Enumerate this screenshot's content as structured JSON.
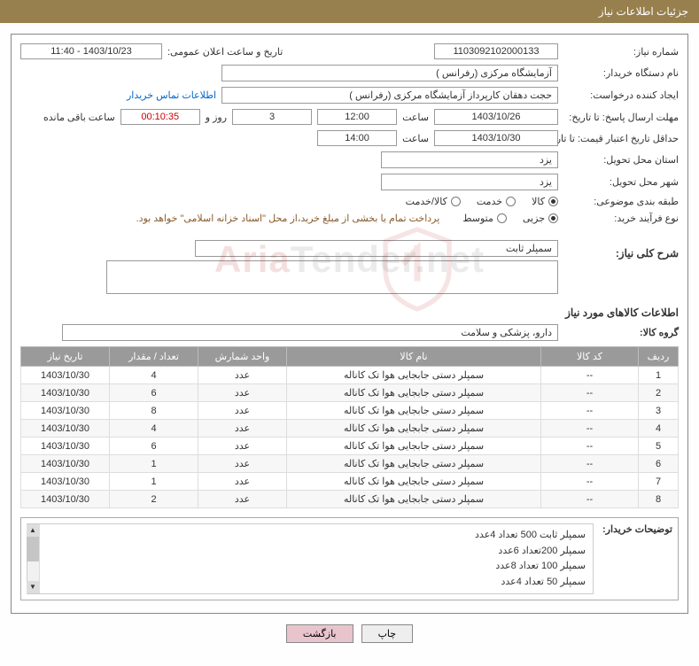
{
  "header": {
    "title": "جزئیات اطلاعات نیاز"
  },
  "fields": {
    "need_number_label": "شماره نیاز:",
    "need_number": "1103092102000133",
    "announce_date_label": "تاریخ و ساعت اعلان عمومی:",
    "announce_date": "1403/10/23 - 11:40",
    "buyer_org_label": "نام دستگاه خریدار:",
    "buyer_org": "آزمایشگاه مرکزی (رفرانس )",
    "requester_label": "ایجاد کننده درخواست:",
    "requester": "حجت دهقان کارپرداز آزمایشگاه مرکزی (رفرانس )",
    "contact_link": "اطلاعات تماس خریدار",
    "deadline_label": "مهلت ارسال پاسخ: تا تاریخ:",
    "deadline_date": "1403/10/26",
    "time_label": "ساعت",
    "deadline_time": "12:00",
    "remaining_days": "3",
    "days_and": "روز و",
    "remaining_time": "00:10:35",
    "remaining_suffix": "ساعت باقی مانده",
    "validity_label": "حداقل تاریخ اعتبار قیمت: تا تاریخ:",
    "validity_date": "1403/10/30",
    "validity_time": "14:00",
    "province_label": "استان محل تحویل:",
    "province": "یزد",
    "city_label": "شهر محل تحویل:",
    "city": "یزد",
    "category_label": "طبقه بندی موضوعی:",
    "cat_goods": "کالا",
    "cat_service": "خدمت",
    "cat_goods_service": "کالا/خدمت",
    "process_label": "نوع فرآیند خرید:",
    "proc_small": "جزیی",
    "proc_medium": "متوسط",
    "treasury_note": "پرداخت تمام یا بخشی از مبلغ خرید،از محل \"اسناد خزانه اسلامی\" خواهد بود.",
    "summary_label": "شرح کلی نیاز:",
    "summary_value": "سمپلر ثابت",
    "items_title": "اطلاعات کالاهای مورد نیاز",
    "group_label": "گروه کالا:",
    "group_value": "دارو، پزشکی و سلامت"
  },
  "table": {
    "headers": {
      "row": "ردیف",
      "code": "کد کالا",
      "name": "نام کالا",
      "unit": "واحد شمارش",
      "qty": "تعداد / مقدار",
      "date": "تاریخ نیاز"
    },
    "rows": [
      {
        "n": "1",
        "code": "--",
        "name": "سمپلر دستی جابجایی هوا تک کاناله",
        "unit": "عدد",
        "qty": "4",
        "date": "1403/10/30"
      },
      {
        "n": "2",
        "code": "--",
        "name": "سمپلر دستی جابجایی هوا تک کاناله",
        "unit": "عدد",
        "qty": "6",
        "date": "1403/10/30"
      },
      {
        "n": "3",
        "code": "--",
        "name": "سمپلر دستی جابجایی هوا تک کاناله",
        "unit": "عدد",
        "qty": "8",
        "date": "1403/10/30"
      },
      {
        "n": "4",
        "code": "--",
        "name": "سمپلر دستی جابجایی هوا تک کاناله",
        "unit": "عدد",
        "qty": "4",
        "date": "1403/10/30"
      },
      {
        "n": "5",
        "code": "--",
        "name": "سمپلر دستی جابجایی هوا تک کاناله",
        "unit": "عدد",
        "qty": "6",
        "date": "1403/10/30"
      },
      {
        "n": "6",
        "code": "--",
        "name": "سمپلر دستی جابجایی هوا تک کاناله",
        "unit": "عدد",
        "qty": "1",
        "date": "1403/10/30"
      },
      {
        "n": "7",
        "code": "--",
        "name": "سمپلر دستی جابجایی هوا تک کاناله",
        "unit": "عدد",
        "qty": "1",
        "date": "1403/10/30"
      },
      {
        "n": "8",
        "code": "--",
        "name": "سمپلر دستی جابجایی هوا تک کاناله",
        "unit": "عدد",
        "qty": "2",
        "date": "1403/10/30"
      }
    ]
  },
  "desc": {
    "label": "توضیحات خریدار:",
    "lines": [
      "سمپلر ثابت 500 تعداد 4عدد",
      "سمپلر 200تعداد 6عدد",
      "سمپلر 100 تعداد 8عدد",
      "سمپلر 50 تعداد 4عدد"
    ]
  },
  "buttons": {
    "print": "چاپ",
    "back": "بازگشت"
  },
  "watermark": {
    "red": "Aria",
    "gray": "Tender",
    "suffix": ".net"
  },
  "colors": {
    "header_bg": "#97804d",
    "th_bg": "#9a9a9a",
    "link": "#0066cc",
    "note": "#8a5a2b",
    "back_btn": "#e8c5cc"
  }
}
